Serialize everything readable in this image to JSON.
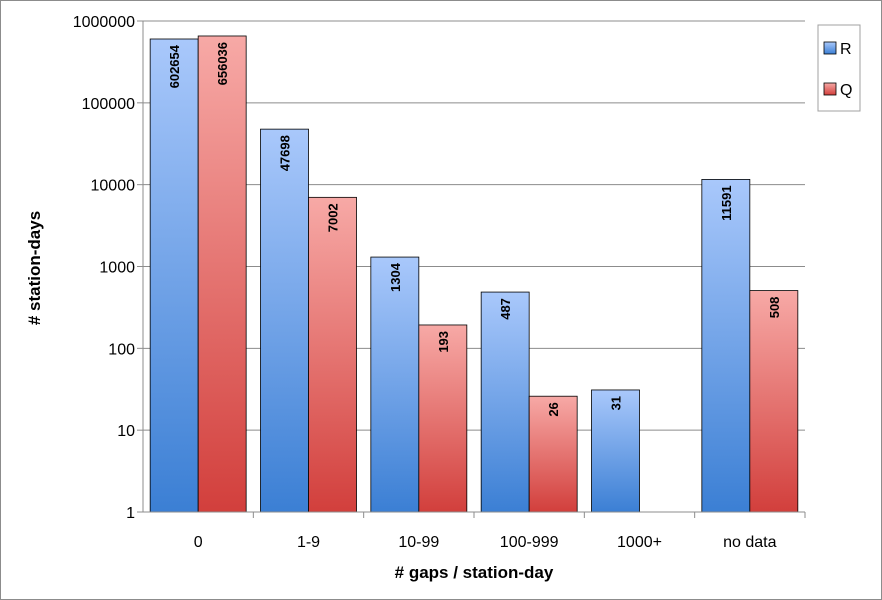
{
  "chart_data": {
    "type": "bar",
    "scale": "log",
    "xlabel": "# gaps / station-day",
    "ylabel": "# station-days",
    "categories": [
      "0",
      "1-9",
      "10-99",
      "100-999",
      "1000+",
      "no data"
    ],
    "series": [
      {
        "name": "R",
        "values": [
          602654,
          47698,
          1304,
          487,
          31,
          11591
        ],
        "labels": [
          "602654",
          "47698",
          "1304",
          "487",
          "31",
          "11591"
        ]
      },
      {
        "name": "Q",
        "values": [
          656036,
          7002,
          193,
          26,
          null,
          508
        ],
        "labels": [
          "656036",
          "7002",
          "193",
          "26",
          "",
          "508"
        ]
      }
    ],
    "ylim": [
      1,
      1000000
    ],
    "yticks": [
      "1",
      "10",
      "100",
      "1000",
      "10000",
      "100000",
      "1000000"
    ],
    "grid": true,
    "legend_position": "top-right",
    "colors": {
      "R_top": "#a9c8fb",
      "R_bottom": "#3b7fd4",
      "Q_top": "#f7a9a6",
      "Q_bottom": "#d23f3c",
      "grid": "#8c8c8c",
      "axis": "#8c8c8c"
    }
  }
}
